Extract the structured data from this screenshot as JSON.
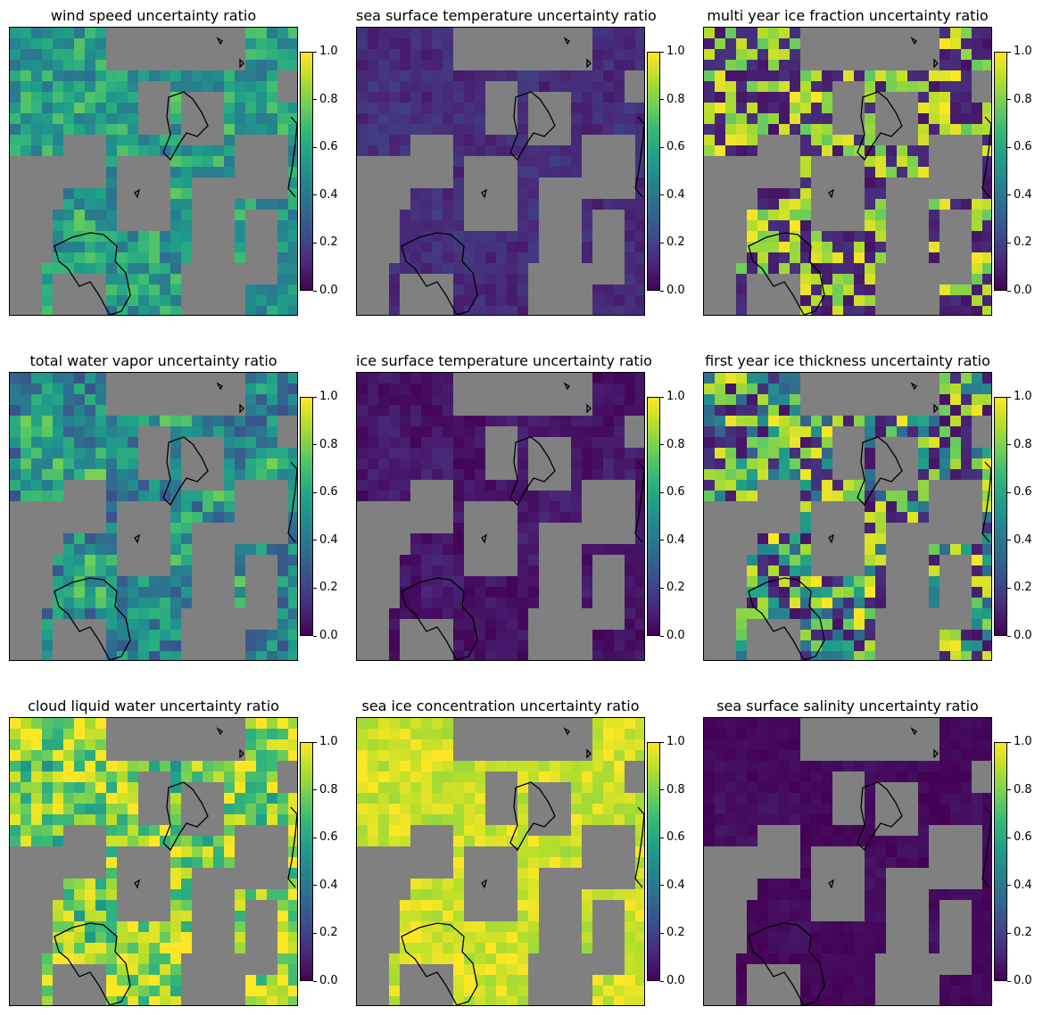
{
  "colors": {
    "masked": "#808080",
    "coast": "#000000",
    "viridis": [
      "#440154",
      "#482878",
      "#3e4989",
      "#31688e",
      "#26828e",
      "#1f9e89",
      "#35b779",
      "#6ece58",
      "#b5de2b",
      "#fde725"
    ]
  },
  "colorbar": {
    "min": 0.0,
    "max": 1.0,
    "tick_labels": [
      "0.0",
      "0.2",
      "0.4",
      "0.6",
      "0.8",
      "1.0"
    ]
  },
  "chart_data": [
    {
      "type": "heatmap",
      "title": "wind speed uncertainty ratio",
      "vmin": 0,
      "vmax": 1,
      "background_level": 0.55,
      "block_level": 0.58,
      "variation": 0.18
    },
    {
      "type": "heatmap",
      "title": "sea surface temperature uncertainty ratio",
      "vmin": 0,
      "vmax": 1,
      "background_level": 0.12,
      "block_level": 0.14,
      "variation": 0.05
    },
    {
      "type": "heatmap",
      "title": "multi year ice fraction uncertainty ratio",
      "vmin": 0,
      "vmax": 1,
      "background_level": 0.5,
      "block_level": 0.5,
      "variation": 0.5
    },
    {
      "type": "heatmap",
      "title": "total water vapor uncertainty ratio",
      "vmin": 0,
      "vmax": 1,
      "background_level": 0.45,
      "block_level": 0.6,
      "variation": 0.2
    },
    {
      "type": "heatmap",
      "title": "ice surface temperature uncertainty ratio",
      "vmin": 0,
      "vmax": 1,
      "background_level": 0.05,
      "block_level": 0.08,
      "variation": 0.04
    },
    {
      "type": "heatmap",
      "title": "first year ice thickness uncertainty ratio",
      "vmin": 0,
      "vmax": 1,
      "background_level": 0.8,
      "block_level": 0.8,
      "variation": 0.35
    },
    {
      "type": "heatmap",
      "title": "cloud liquid water uncertainty ratio",
      "vmin": 0,
      "vmax": 1,
      "background_level": 0.85,
      "block_level": 0.75,
      "variation": 0.25
    },
    {
      "type": "heatmap",
      "title": "sea ice concentration uncertainty ratio",
      "vmin": 0,
      "vmax": 1,
      "background_level": 0.93,
      "block_level": 0.92,
      "variation": 0.08
    },
    {
      "type": "heatmap",
      "title": "sea surface salinity uncertainty ratio",
      "vmin": 0,
      "vmax": 1,
      "background_level": 0.02,
      "block_level": 0.04,
      "variation": 0.02
    }
  ]
}
